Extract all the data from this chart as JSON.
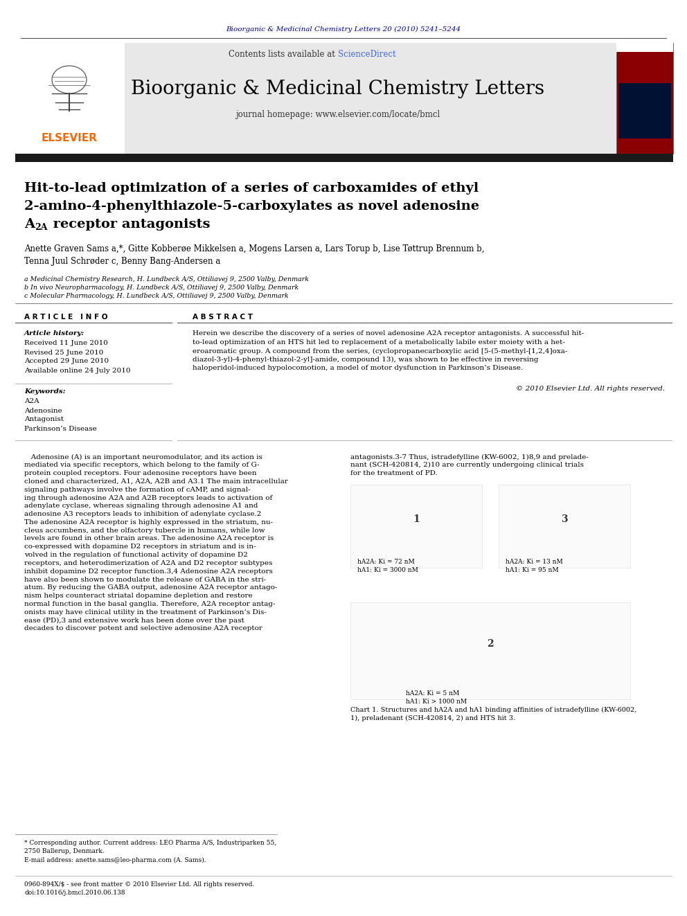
{
  "bg_color": "#ffffff",
  "top_journal_ref": "Bioorganic & Medicinal Chemistry Letters 20 (2010) 5241–5244",
  "top_journal_ref_color": "#00008B",
  "header_bg": "#e8e8e8",
  "header_text1": "Contents lists available at ",
  "header_sciencedirect": "ScienceDirect",
  "header_sciencedirect_color": "#4169E1",
  "journal_name": "Bioorganic & Medicinal Chemistry Letters",
  "journal_homepage": "journal homepage: www.elsevier.com/locate/bmcl",
  "thick_bar_color": "#1a1a1a",
  "article_title_line1": "Hit-to-lead optimization of a series of carboxamides of ethyl",
  "article_title_line2": "2-amino-4-phenylthiazole-5-carboxylates as novel adenosine",
  "article_title_line3a": "A",
  "article_title_line3b": "2A",
  "article_title_line3c": " receptor antagonists",
  "authors_line1": "Anette Graven Sams a,*, Gitte Kobberøe Mikkelsen a, Mogens Larsen a, Lars Torup b, Lise Tøttrup Brennum b,",
  "authors_line2": "Tenna Juul Schrøder c, Benny Bang-Andersen a",
  "affil_a": "a Medicinal Chemistry Research, H. Lundbeck A/S, Ottiliavej 9, 2500 Valby, Denmark",
  "affil_b": "b In vivo Neuropharmacology, H. Lundbeck A/S, Ottiliavej 9, 2500 Valby, Denmark",
  "affil_c": "c Molecular Pharmacology, H. Lundbeck A/S, Ottiliavej 9, 2500 Valby, Denmark",
  "article_info_header": "A R T I C L E   I N F O",
  "abstract_header": "A B S T R A C T",
  "article_history_label": "Article history:",
  "received": "Received 11 June 2010",
  "revised": "Revised 25 June 2010",
  "accepted": "Accepted 29 June 2010",
  "available": "Available online 24 July 2010",
  "keywords_label": "Keywords:",
  "keywords": [
    "A2A",
    "Adenosine",
    "Antagonist",
    "Parkinson’s Disease"
  ],
  "abstract_lines": [
    "Herein we describe the discovery of a series of novel adenosine A2A receptor antagonists. A successful hit-",
    "to-lead optimization of an HTS hit led to replacement of a metabolically labile ester moiety with a het-",
    "eroaromatic group. A compound from the series, (cyclopropanecarboxylic acid [5-(5-methyl-[1,2,4]oxa-",
    "diazol-3-yl)-4-phenyl-thiazol-2-yl]-amide, compound 13), was shown to be effective in reversing",
    "haloperidol-induced hypolocomotion, a model of motor dysfunction in Parkinson’s Disease."
  ],
  "abstract_copyright": "© 2010 Elsevier Ltd. All rights reserved.",
  "body_left_lines": [
    "   Adenosine (A) is an important neuromodulator, and its action is",
    "mediated via specific receptors, which belong to the family of G-",
    "protein coupled receptors. Four adenosine receptors have been",
    "cloned and characterized, A1, A2A, A2B and A3.1 The main intracellular",
    "signaling pathways involve the formation of cAMP, and signal-",
    "ing through adenosine A2A and A2B receptors leads to activation of",
    "adenylate cyclase, whereas signaling through adenosine A1 and",
    "adenosine A3 receptors leads to inhibition of adenylate cyclase.2",
    "The adenosine A2A receptor is highly expressed in the striatum, nu-",
    "cleus accumbens, and the olfactory tubercle in humans, while low",
    "levels are found in other brain areas. The adenosine A2A receptor is",
    "co-expressed with dopamine D2 receptors in striatum and is in-",
    "volved in the regulation of functional activity of dopamine D2",
    "receptors, and heterodimerization of A2A and D2 receptor subtypes",
    "inhibit dopamine D2 receptor function.3,4 Adenosine A2A receptors",
    "have also been shown to modulate the release of GABA in the stri-",
    "atum. By reducing the GABA output, adenosine A2A receptor antago-",
    "nism helps counteract striatal dopamine depletion and restore",
    "normal function in the basal ganglia. Therefore, A2A receptor antag-",
    "onists may have clinical utility in the treatment of Parkinson’s Dis-",
    "ease (PD),3 and extensive work has been done over the past",
    "decades to discover potent and selective adenosine A2A receptor"
  ],
  "body_right_lines": [
    "antagonists.3-7 Thus, istradefylline (KW-6002, 1)8,9 and prelade-",
    "nant (SCH-420814, 2)10 are currently undergoing clinical trials",
    "for the treatment of PD."
  ],
  "chart1_caption": "Chart 1. Structures and hA2A and hA1 binding affinities of istradefylline (KW-6002,\n1), preladenant (SCH-420814, 2) and HTS hit 3.",
  "comp1_ki_a2a": "hA2A: Ki = 72 nM",
  "comp1_ki_a1": "hA1: Ki = 3000 nM",
  "comp2_ki_a2a": "hA2A: Ki = 5 nM",
  "comp2_ki_a1": "hA1: Ki > 1000 nM",
  "comp3_ki_a2a": "hA2A: Ki = 13 nM",
  "comp3_ki_a1": "hA1: Ki = 95 nM",
  "footnote_corr": "* Corresponding author. Current address: LEO Pharma A/S, Industriparken 55,",
  "footnote_corr2": "2750 Ballerup, Denmark.",
  "footnote_email": "E-mail address: anette.sams@leo-pharma.com (A. Sams).",
  "footer_issn": "0960-894X/$ - see front matter © 2010 Elsevier Ltd. All rights reserved.",
  "footer_doi": "doi:10.1016/j.bmcl.2010.06.138"
}
